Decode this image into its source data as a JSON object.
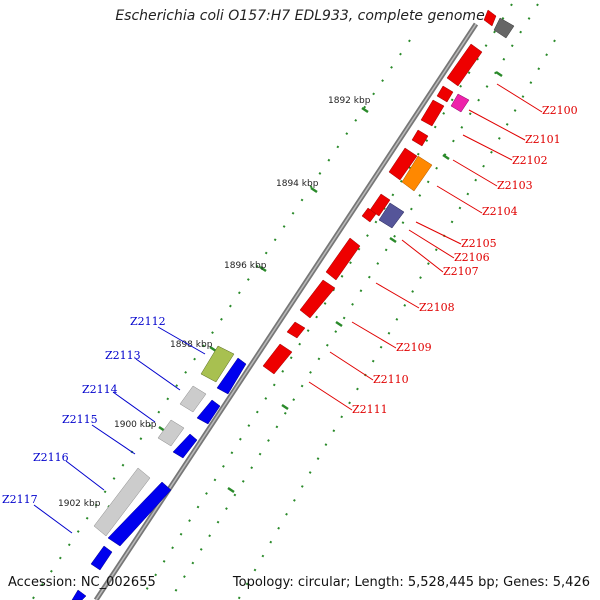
{
  "title": "Escherichia coli O157:H7 EDL933, complete genome",
  "accession": "Accession: NC_002655",
  "summary": "Topology: circular; Length: 5,528,445 bp; Genes: 5,426",
  "colors": {
    "forward_label": "#e00000",
    "reverse_label": "#0000cc",
    "backbone": "#777777",
    "tick": "#2a8a2a"
  },
  "ticks": [
    "1892 kbp",
    "1894 kbp",
    "1896 kbp",
    "1898 kbp",
    "1900 kbp",
    "1902 kbp"
  ],
  "forward_genes": [
    "Z2100",
    "Z2101",
    "Z2102",
    "Z2103",
    "Z2104",
    "Z2105",
    "Z2106",
    "Z2107",
    "Z2108",
    "Z2109",
    "Z2110",
    "Z2111"
  ],
  "reverse_genes": [
    "Z2112",
    "Z2113",
    "Z2114",
    "Z2115",
    "Z2116",
    "Z2117"
  ]
}
